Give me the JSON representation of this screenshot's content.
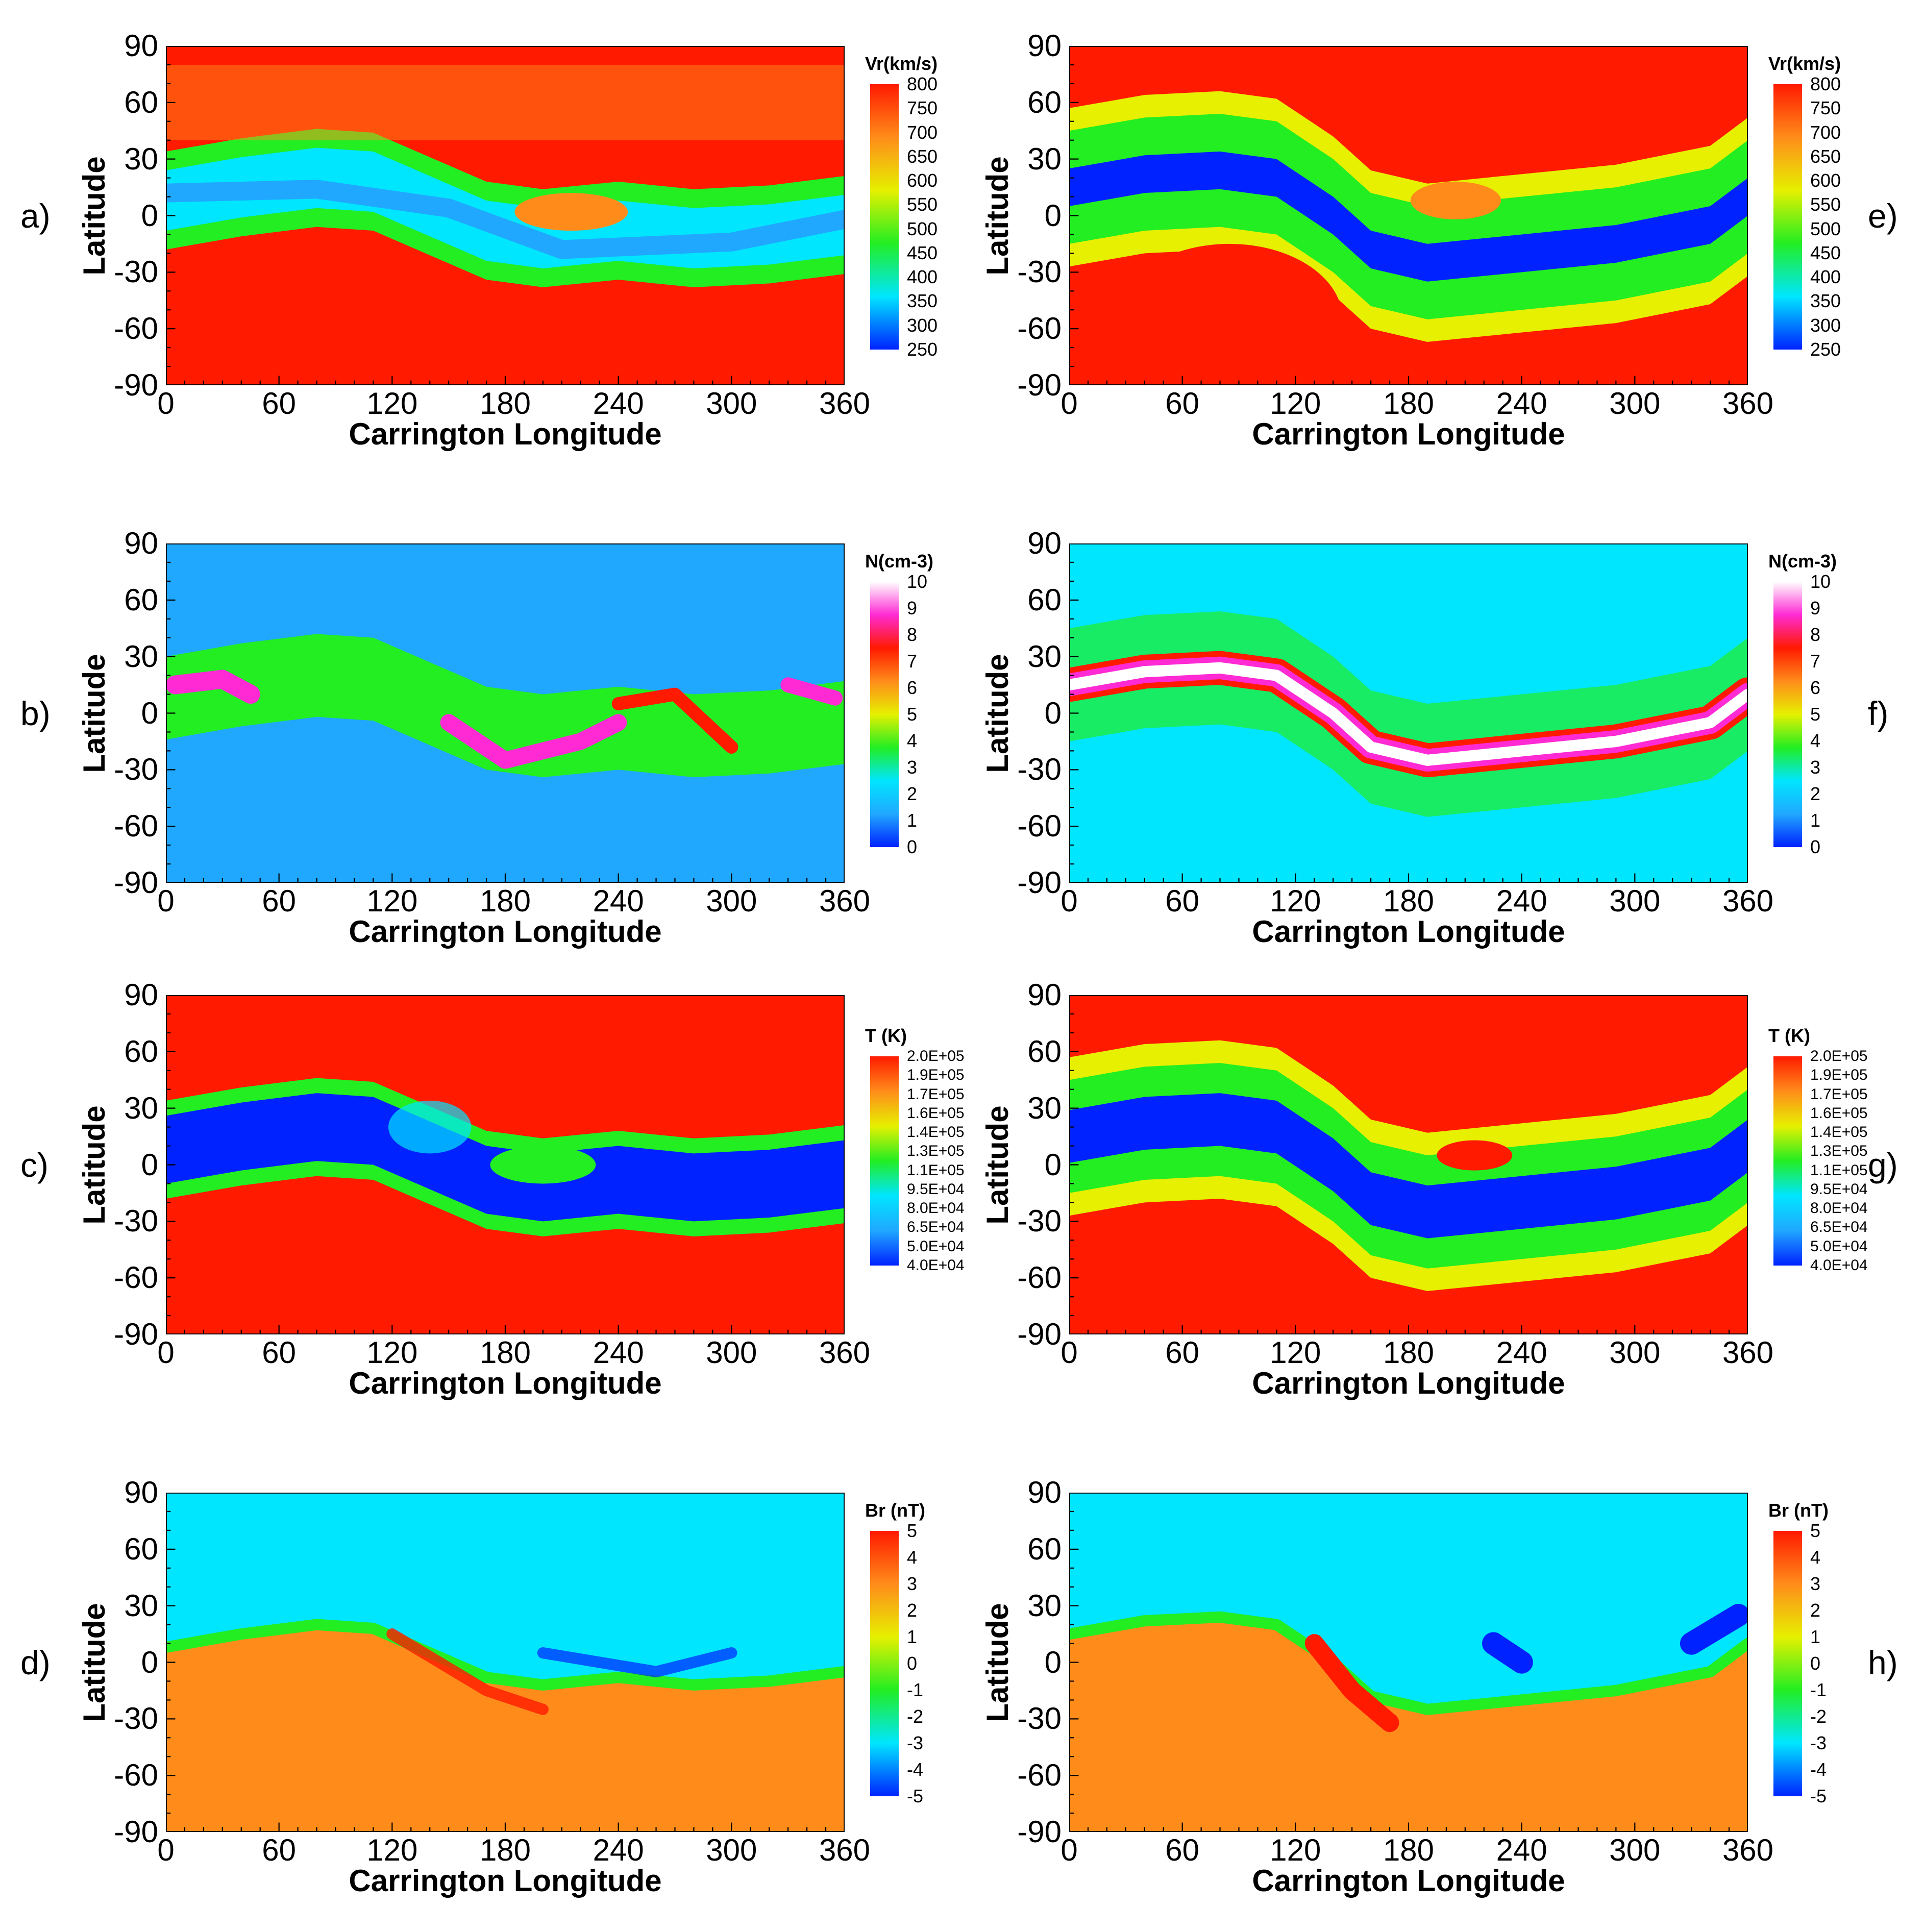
{
  "chart_data": [
    {
      "type": "heatmap",
      "panel_label": "a)",
      "quantity": "Vr",
      "title": "",
      "xlabel": "Carrington Longitude",
      "ylabel": "Latitude",
      "xlim": [
        0,
        360
      ],
      "ylim": [
        -90,
        90
      ],
      "xticks": [
        "0",
        "60",
        "120",
        "180",
        "240",
        "300",
        "360"
      ],
      "yticks": [
        "90",
        "60",
        "30",
        "0",
        "-30",
        "-60",
        "-90"
      ],
      "colorbar": {
        "title": "Vr(km/s)",
        "range": [
          250,
          800
        ],
        "ticks": [
          "800",
          "750",
          "700",
          "650",
          "600",
          "550",
          "500",
          "450",
          "400",
          "350",
          "300",
          "250"
        ]
      },
      "description_values": {
        "north_fast_wind_kms": 780,
        "south_fast_wind_kms": 790,
        "equatorial_band_kms": [
          330,
          560
        ],
        "band_lat_range": [
          -30,
          30
        ]
      }
    },
    {
      "type": "heatmap",
      "panel_label": "b)",
      "quantity": "N",
      "title": "",
      "xlabel": "Carrington Longitude",
      "ylabel": "Latitude",
      "xlim": [
        0,
        360
      ],
      "ylim": [
        -90,
        90
      ],
      "xticks": [
        "0",
        "60",
        "120",
        "180",
        "240",
        "300",
        "360"
      ],
      "yticks": [
        "90",
        "60",
        "30",
        "0",
        "-30",
        "-60",
        "-90"
      ],
      "colorbar": {
        "title": "N(cm-3)",
        "range": [
          0,
          10
        ],
        "ticks": [
          "10",
          "9",
          "8",
          "7",
          "6",
          "5",
          "4",
          "3",
          "2",
          "1",
          "0"
        ]
      },
      "description_values": {
        "background_cm3": 1,
        "band_cm3": [
          3,
          10
        ]
      }
    },
    {
      "type": "heatmap",
      "panel_label": "c)",
      "quantity": "T",
      "title": "",
      "xlabel": "Carrington Longitude",
      "ylabel": "Latitude",
      "xlim": [
        0,
        360
      ],
      "ylim": [
        -90,
        90
      ],
      "xticks": [
        "0",
        "60",
        "120",
        "180",
        "240",
        "300",
        "360"
      ],
      "yticks": [
        "90",
        "60",
        "30",
        "0",
        "-30",
        "-60",
        "-90"
      ],
      "colorbar": {
        "title": "T (K)",
        "range": [
          40000,
          200000
        ],
        "ticks": [
          "2.0E+05",
          "1.9E+05",
          "1.7E+05",
          "1.6E+05",
          "1.4E+05",
          "1.3E+05",
          "1.1E+05",
          "9.5E+04",
          "8.0E+04",
          "6.5E+04",
          "5.0E+04",
          "4.0E+04"
        ]
      },
      "description_values": {
        "polar_K": 200000,
        "band_K": [
          40000,
          100000
        ]
      }
    },
    {
      "type": "heatmap",
      "panel_label": "d)",
      "quantity": "Br",
      "title": "",
      "xlabel": "Carrington Longitude",
      "ylabel": "Latitude",
      "xlim": [
        0,
        360
      ],
      "ylim": [
        -90,
        90
      ],
      "xticks": [
        "0",
        "60",
        "120",
        "180",
        "240",
        "300",
        "360"
      ],
      "yticks": [
        "90",
        "60",
        "30",
        "0",
        "-30",
        "-60",
        "-90"
      ],
      "colorbar": {
        "title": "Br (nT)",
        "range": [
          -5,
          5
        ],
        "ticks": [
          "5",
          "4",
          "3",
          "2",
          "1",
          "0",
          "-1",
          "-2",
          "-3",
          "-4",
          "-5"
        ]
      },
      "description_values": {
        "north_nT": -2.5,
        "south_nT": 2.5
      }
    },
    {
      "type": "heatmap",
      "panel_label": "e)",
      "quantity": "Vr",
      "title": "",
      "xlabel": "Carrington Longitude",
      "ylabel": "Latitude",
      "xlim": [
        0,
        360
      ],
      "ylim": [
        -90,
        90
      ],
      "xticks": [
        "0",
        "60",
        "120",
        "180",
        "240",
        "300",
        "360"
      ],
      "yticks": [
        "90",
        "60",
        "30",
        "0",
        "-30",
        "-60",
        "-90"
      ],
      "colorbar": {
        "title": "Vr(km/s)",
        "range": [
          250,
          800
        ],
        "ticks": [
          "800",
          "750",
          "700",
          "650",
          "600",
          "550",
          "500",
          "450",
          "400",
          "350",
          "300",
          "250"
        ]
      },
      "description_values": {
        "fast_wind_kms": 790,
        "current_sheet_kms": 280
      }
    },
    {
      "type": "heatmap",
      "panel_label": "f)",
      "quantity": "N",
      "title": "",
      "xlabel": "Carrington Longitude",
      "ylabel": "Latitude",
      "xlim": [
        0,
        360
      ],
      "ylim": [
        -90,
        90
      ],
      "xticks": [
        "0",
        "60",
        "120",
        "180",
        "240",
        "300",
        "360"
      ],
      "yticks": [
        "90",
        "60",
        "30",
        "0",
        "-30",
        "-60",
        "-90"
      ],
      "colorbar": {
        "title": "N(cm-3)",
        "range": [
          0,
          10
        ],
        "ticks": [
          "10",
          "9",
          "8",
          "7",
          "6",
          "5",
          "4",
          "3",
          "2",
          "1",
          "0"
        ]
      },
      "description_values": {
        "background_cm3": 2,
        "current_sheet_cm3": 10
      }
    },
    {
      "type": "heatmap",
      "panel_label": "g)",
      "quantity": "T",
      "title": "",
      "xlabel": "Carrington Longitude",
      "ylabel": "Latitude",
      "xlim": [
        0,
        360
      ],
      "ylim": [
        -90,
        90
      ],
      "xticks": [
        "0",
        "60",
        "120",
        "180",
        "240",
        "300",
        "360"
      ],
      "yticks": [
        "90",
        "60",
        "30",
        "0",
        "-30",
        "-60",
        "-90"
      ],
      "colorbar": {
        "title": "T (K)",
        "range": [
          40000,
          200000
        ],
        "ticks": [
          "2.0E+05",
          "1.9E+05",
          "1.7E+05",
          "1.6E+05",
          "1.4E+05",
          "1.3E+05",
          "1.1E+05",
          "9.5E+04",
          "8.0E+04",
          "6.5E+04",
          "5.0E+04",
          "4.0E+04"
        ]
      },
      "description_values": {
        "polar_K": 200000,
        "current_sheet_K": 40000
      }
    },
    {
      "type": "heatmap",
      "panel_label": "h)",
      "quantity": "Br",
      "title": "",
      "xlabel": "Carrington Longitude",
      "ylabel": "Latitude",
      "xlim": [
        0,
        360
      ],
      "ylim": [
        -90,
        90
      ],
      "xticks": [
        "0",
        "60",
        "120",
        "180",
        "240",
        "300",
        "360"
      ],
      "yticks": [
        "90",
        "60",
        "30",
        "0",
        "-30",
        "-60",
        "-90"
      ],
      "colorbar": {
        "title": "Br (nT)",
        "range": [
          -5,
          5
        ],
        "ticks": [
          "5",
          "4",
          "3",
          "2",
          "1",
          "0",
          "-1",
          "-2",
          "-3",
          "-4",
          "-5"
        ]
      },
      "description_values": {
        "north_nT": -2.5,
        "south_nT": 2
      }
    }
  ],
  "colors": {
    "red": "#ff1a00",
    "orange": "#ff8c1a",
    "yellow": "#e6f000",
    "green": "#22ee22",
    "cyan": "#00e6ff",
    "lightblue": "#20a8ff",
    "blue": "#0022ff",
    "white": "#ffffff",
    "magenta": "#ff2ad4"
  }
}
